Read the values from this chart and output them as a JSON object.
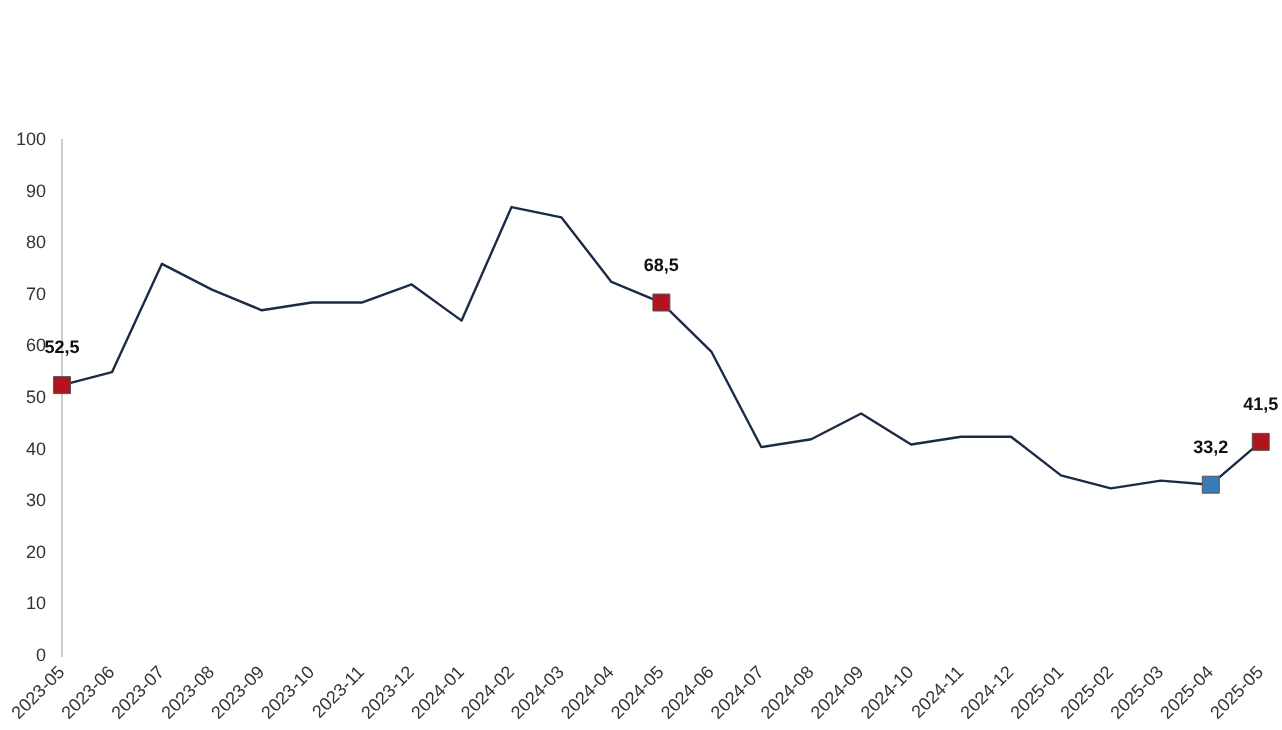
{
  "chart_data": {
    "type": "line",
    "categories": [
      "2023-05",
      "2023-06",
      "2023-07",
      "2023-08",
      "2023-09",
      "2023-10",
      "2023-11",
      "2023-12",
      "2024-01",
      "2024-02",
      "2024-03",
      "2024-04",
      "2024-05",
      "2024-06",
      "2024-07",
      "2024-08",
      "2024-09",
      "2024-10",
      "2024-11",
      "2024-12",
      "2025-01",
      "2025-02",
      "2025-03",
      "2025-04",
      "2025-05"
    ],
    "series": [
      {
        "color": "#1c2b45",
        "marker": "none",
        "values": [
          52.5,
          55,
          76,
          71,
          67,
          68.5,
          68.5,
          72,
          65,
          87,
          85,
          72.5,
          68.5,
          59,
          40.5,
          42,
          47,
          41,
          42.5,
          42.5,
          35,
          32.5,
          34,
          33.2,
          41.5
        ]
      },
      {
        "type": "scatter",
        "color": "#b0141c",
        "marker": "square",
        "values": [
          52.5,
          null,
          null,
          null,
          null,
          null,
          null,
          null,
          null,
          null,
          null,
          null,
          68.5,
          null,
          null,
          null,
          null,
          null,
          null,
          null,
          null,
          null,
          null,
          null,
          41.5
        ],
        "value_labels": [
          "52,5",
          null,
          null,
          null,
          null,
          null,
          null,
          null,
          null,
          null,
          null,
          null,
          "68,5",
          null,
          null,
          null,
          null,
          null,
          null,
          null,
          null,
          null,
          null,
          null,
          "41,5"
        ]
      },
      {
        "type": "scatter",
        "color": "#3a7ab8",
        "marker": "square",
        "values": [
          null,
          null,
          null,
          null,
          null,
          null,
          null,
          null,
          null,
          null,
          null,
          null,
          null,
          null,
          null,
          null,
          null,
          null,
          null,
          null,
          null,
          null,
          null,
          33.2,
          null
        ],
        "value_labels": [
          null,
          null,
          null,
          null,
          null,
          null,
          null,
          null,
          null,
          null,
          null,
          null,
          null,
          null,
          null,
          null,
          null,
          null,
          null,
          null,
          null,
          null,
          null,
          "33,2",
          null
        ]
      }
    ],
    "ylim": [
      0,
      100
    ],
    "yticks": [
      0,
      10,
      20,
      30,
      40,
      50,
      60,
      70,
      80,
      90,
      100
    ],
    "grid": false,
    "legend": false
  }
}
